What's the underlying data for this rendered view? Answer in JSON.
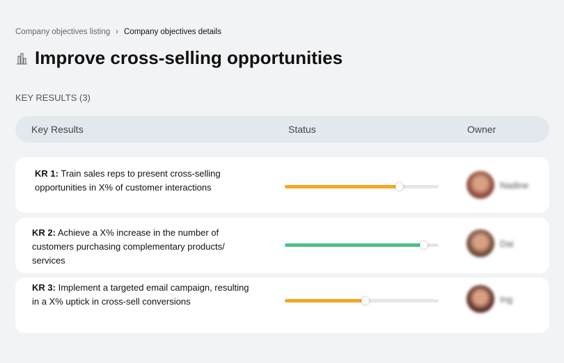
{
  "breadcrumb": {
    "items": [
      "Company objectives listing",
      "Company objectives details"
    ],
    "separator": "›"
  },
  "page": {
    "title": "Improve cross-selling opportunities",
    "icon": "building-chart-icon"
  },
  "section": {
    "label": "KEY RESULTS (3)"
  },
  "table": {
    "headers": [
      "Key Results",
      "Status",
      "Owner"
    ],
    "rows": [
      {
        "prefix": "KR 1:",
        "text": "Train sales reps to present cross-selling opportunities in X% of customer interactions",
        "progress": 0.74,
        "color": "#f5a623",
        "owner": "Nadine"
      },
      {
        "prefix": "KR 2:",
        "text": "Achieve a X% increase in the number of customers purchasing complementary products/ services",
        "progress": 0.9,
        "color": "#4cc38a",
        "owner": "Dai"
      },
      {
        "prefix": "KR 3:",
        "text": "Implement a targeted email campaign, resulting in a X% uptick in cross-sell conversions",
        "progress": 0.52,
        "color": "#f5a623",
        "owner": "Ing"
      }
    ]
  }
}
